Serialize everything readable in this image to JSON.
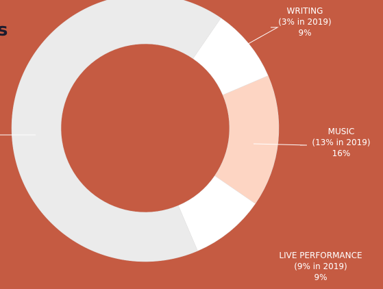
{
  "chart_data": {
    "type": "donut",
    "title": "s",
    "categories": [
      "WRITING",
      "MUSIC",
      "LIVE PERFORMANCE",
      null
    ],
    "sublabels": [
      "(3% in 2019)",
      "(13% in 2019)",
      "(9% in 2019)",
      null
    ],
    "values": [
      9,
      16,
      9,
      66
    ],
    "value_labels": [
      "9%",
      "16%",
      "9%",
      null
    ],
    "colors": [
      "#ffffff",
      "#fdd5c3",
      "#ffffff",
      "#ebebeb"
    ]
  }
}
